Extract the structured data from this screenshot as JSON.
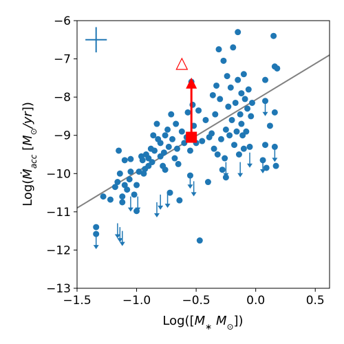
{
  "chart_data": {
    "type": "scatter",
    "xlabel": "Log([M_* M_⊙])",
    "ylabel": "Log(Ṁ_acc [M_⊙/yr])",
    "xlim": [
      -1.5,
      0.62
    ],
    "ylim": [
      -13,
      -6
    ],
    "x_ticks": [
      -1.5,
      -1.0,
      -0.5,
      0.0,
      0.5
    ],
    "x_tick_labels": [
      "−1.5",
      "−1.0",
      "−0.5",
      "0.0",
      "0.5"
    ],
    "y_ticks": [
      -13,
      -12,
      -11,
      -10,
      -9,
      -8,
      -7,
      -6
    ],
    "y_tick_labels": [
      "−13",
      "−12",
      "−11",
      "−10",
      "−9",
      "−8",
      "−7",
      "−6"
    ],
    "grid": false,
    "colors": {
      "points": "#1f77b4",
      "highlight": "#ff0000",
      "fit_line": "#808080"
    },
    "fit_line": {
      "x": [
        -1.5,
        0.62
      ],
      "y": [
        -10.9,
        -6.9
      ]
    },
    "error_bar": {
      "x": -1.34,
      "y": -6.5,
      "xerr": 0.09,
      "yerr": 0.33
    },
    "detections": [
      {
        "x": -1.34,
        "y": -11.4
      },
      {
        "x": -1.34,
        "y": -11.58
      },
      {
        "x": -1.28,
        "y": -10.6
      },
      {
        "x": -1.22,
        "y": -10.68
      },
      {
        "x": -1.18,
        "y": -10.35
      },
      {
        "x": -1.16,
        "y": -10.22
      },
      {
        "x": -1.14,
        "y": -10.0
      },
      {
        "x": -1.12,
        "y": -10.6
      },
      {
        "x": -1.12,
        "y": -10.75
      },
      {
        "x": -1.1,
        "y": -10.3
      },
      {
        "x": -1.08,
        "y": -10.42
      },
      {
        "x": -1.06,
        "y": -10.15
      },
      {
        "x": -1.05,
        "y": -9.95
      },
      {
        "x": -1.15,
        "y": -9.4
      },
      {
        "x": -1.1,
        "y": -9.65
      },
      {
        "x": -1.05,
        "y": -9.62
      },
      {
        "x": -1.02,
        "y": -10.55
      },
      {
        "x": -1.0,
        "y": -10.3
      },
      {
        "x": -1.0,
        "y": -10.98
      },
      {
        "x": -0.98,
        "y": -9.95
      },
      {
        "x": -0.96,
        "y": -9.55
      },
      {
        "x": -0.95,
        "y": -9.65
      },
      {
        "x": -0.94,
        "y": -10.0
      },
      {
        "x": -0.93,
        "y": -9.88
      },
      {
        "x": -0.92,
        "y": -9.5
      },
      {
        "x": -0.9,
        "y": -9.6
      },
      {
        "x": -0.9,
        "y": -9.8
      },
      {
        "x": -0.88,
        "y": -9.35
      },
      {
        "x": -0.87,
        "y": -9.7
      },
      {
        "x": -0.86,
        "y": -9.0
      },
      {
        "x": -0.85,
        "y": -9.4
      },
      {
        "x": -0.83,
        "y": -8.7
      },
      {
        "x": -0.82,
        "y": -9.1
      },
      {
        "x": -0.8,
        "y": -9.2
      },
      {
        "x": -0.8,
        "y": -9.55
      },
      {
        "x": -0.78,
        "y": -9.8
      },
      {
        "x": -0.77,
        "y": -9.45
      },
      {
        "x": -0.76,
        "y": -9.9
      },
      {
        "x": -0.76,
        "y": -9.0
      },
      {
        "x": -0.74,
        "y": -8.85
      },
      {
        "x": -0.73,
        "y": -9.3
      },
      {
        "x": -0.72,
        "y": -10.5
      },
      {
        "x": -0.71,
        "y": -8.45
      },
      {
        "x": -0.7,
        "y": -9.1
      },
      {
        "x": -0.68,
        "y": -9.6
      },
      {
        "x": -0.67,
        "y": -8.7
      },
      {
        "x": -0.66,
        "y": -9.35
      },
      {
        "x": -0.65,
        "y": -9.75
      },
      {
        "x": -0.64,
        "y": -10.7
      },
      {
        "x": -0.62,
        "y": -8.9
      },
      {
        "x": -0.6,
        "y": -9.2
      },
      {
        "x": -0.58,
        "y": -9.05
      },
      {
        "x": -0.57,
        "y": -8.4
      },
      {
        "x": -0.55,
        "y": -9.4
      },
      {
        "x": -0.55,
        "y": -10.05
      },
      {
        "x": -0.54,
        "y": -7.6
      },
      {
        "x": -0.53,
        "y": -8.2
      },
      {
        "x": -0.52,
        "y": -8.75
      },
      {
        "x": -0.5,
        "y": -9.2
      },
      {
        "x": -0.48,
        "y": -8.35
      },
      {
        "x": -0.47,
        "y": -11.75
      },
      {
        "x": -0.45,
        "y": -9.15
      },
      {
        "x": -0.42,
        "y": -8.6
      },
      {
        "x": -0.4,
        "y": -10.22
      },
      {
        "x": -0.39,
        "y": -9.05
      },
      {
        "x": -0.37,
        "y": -8.95
      },
      {
        "x": -0.36,
        "y": -7.95
      },
      {
        "x": -0.35,
        "y": -9.35
      },
      {
        "x": -0.34,
        "y": -8.45
      },
      {
        "x": -0.33,
        "y": -7.7
      },
      {
        "x": -0.32,
        "y": -9.5
      },
      {
        "x": -0.31,
        "y": -6.75
      },
      {
        "x": -0.3,
        "y": -8.05
      },
      {
        "x": -0.29,
        "y": -9.1
      },
      {
        "x": -0.28,
        "y": -9.9
      },
      {
        "x": -0.27,
        "y": -7.05
      },
      {
        "x": -0.26,
        "y": -9.6
      },
      {
        "x": -0.25,
        "y": -8.85
      },
      {
        "x": -0.25,
        "y": -10.1
      },
      {
        "x": -0.24,
        "y": -7.45
      },
      {
        "x": -0.23,
        "y": -8.25
      },
      {
        "x": -0.22,
        "y": -9.0
      },
      {
        "x": -0.21,
        "y": -7.75
      },
      {
        "x": -0.2,
        "y": -8.6
      },
      {
        "x": -0.19,
        "y": -6.7
      },
      {
        "x": -0.18,
        "y": -9.25
      },
      {
        "x": -0.17,
        "y": -8.15
      },
      {
        "x": -0.16,
        "y": -8.9
      },
      {
        "x": -0.15,
        "y": -6.3
      },
      {
        "x": -0.15,
        "y": -7.55
      },
      {
        "x": -0.14,
        "y": -9.5
      },
      {
        "x": -0.13,
        "y": -8.45
      },
      {
        "x": -0.12,
        "y": -7.9
      },
      {
        "x": -0.12,
        "y": -8.7
      },
      {
        "x": -0.11,
        "y": -9.0
      },
      {
        "x": -0.1,
        "y": -7.4
      },
      {
        "x": -0.1,
        "y": -9.35
      },
      {
        "x": -0.09,
        "y": -8.05
      },
      {
        "x": -0.08,
        "y": -8.9
      },
      {
        "x": -0.07,
        "y": -8.3
      },
      {
        "x": -0.06,
        "y": -7.8
      },
      {
        "x": -0.05,
        "y": -9.3
      },
      {
        "x": -0.04,
        "y": -8.5
      },
      {
        "x": -0.03,
        "y": -8.15
      },
      {
        "x": 0.06,
        "y": -9.65
      },
      {
        "x": 0.08,
        "y": -7.55
      },
      {
        "x": 0.08,
        "y": -8.1
      },
      {
        "x": 0.08,
        "y": -9.25
      },
      {
        "x": 0.09,
        "y": -9.85
      },
      {
        "x": 0.12,
        "y": -8.75
      },
      {
        "x": 0.15,
        "y": -6.4
      },
      {
        "x": 0.16,
        "y": -7.2
      },
      {
        "x": 0.16,
        "y": -8.4
      },
      {
        "x": 0.16,
        "y": -9.3
      },
      {
        "x": 0.17,
        "y": -9.8
      },
      {
        "x": 0.18,
        "y": -7.25
      }
    ],
    "upper_limits": [
      {
        "x": -1.34,
        "y": -11.58
      },
      {
        "x": -1.16,
        "y": -11.3
      },
      {
        "x": -1.14,
        "y": -11.4
      },
      {
        "x": -1.12,
        "y": -11.5
      },
      {
        "x": -1.05,
        "y": -10.6
      },
      {
        "x": -0.99,
        "y": -10.6
      },
      {
        "x": -0.83,
        "y": -10.75
      },
      {
        "x": -0.8,
        "y": -10.55
      },
      {
        "x": -0.74,
        "y": -10.5
      },
      {
        "x": -0.55,
        "y": -10.0
      },
      {
        "x": -0.52,
        "y": -10.2
      },
      {
        "x": -0.25,
        "y": -9.7
      },
      {
        "x": -0.13,
        "y": -9.7
      },
      {
        "x": -0.05,
        "y": -9.45
      },
      {
        "x": 0.06,
        "y": -9.6
      },
      {
        "x": 0.08,
        "y": -8.1
      },
      {
        "x": 0.16,
        "y": -9.3
      }
    ],
    "highlight": {
      "square": {
        "x": -0.54,
        "y": -9.05
      },
      "filled_triangle": {
        "x": -0.54,
        "y": -7.65
      },
      "open_triangle": {
        "x": -0.62,
        "y": -7.15
      }
    }
  }
}
